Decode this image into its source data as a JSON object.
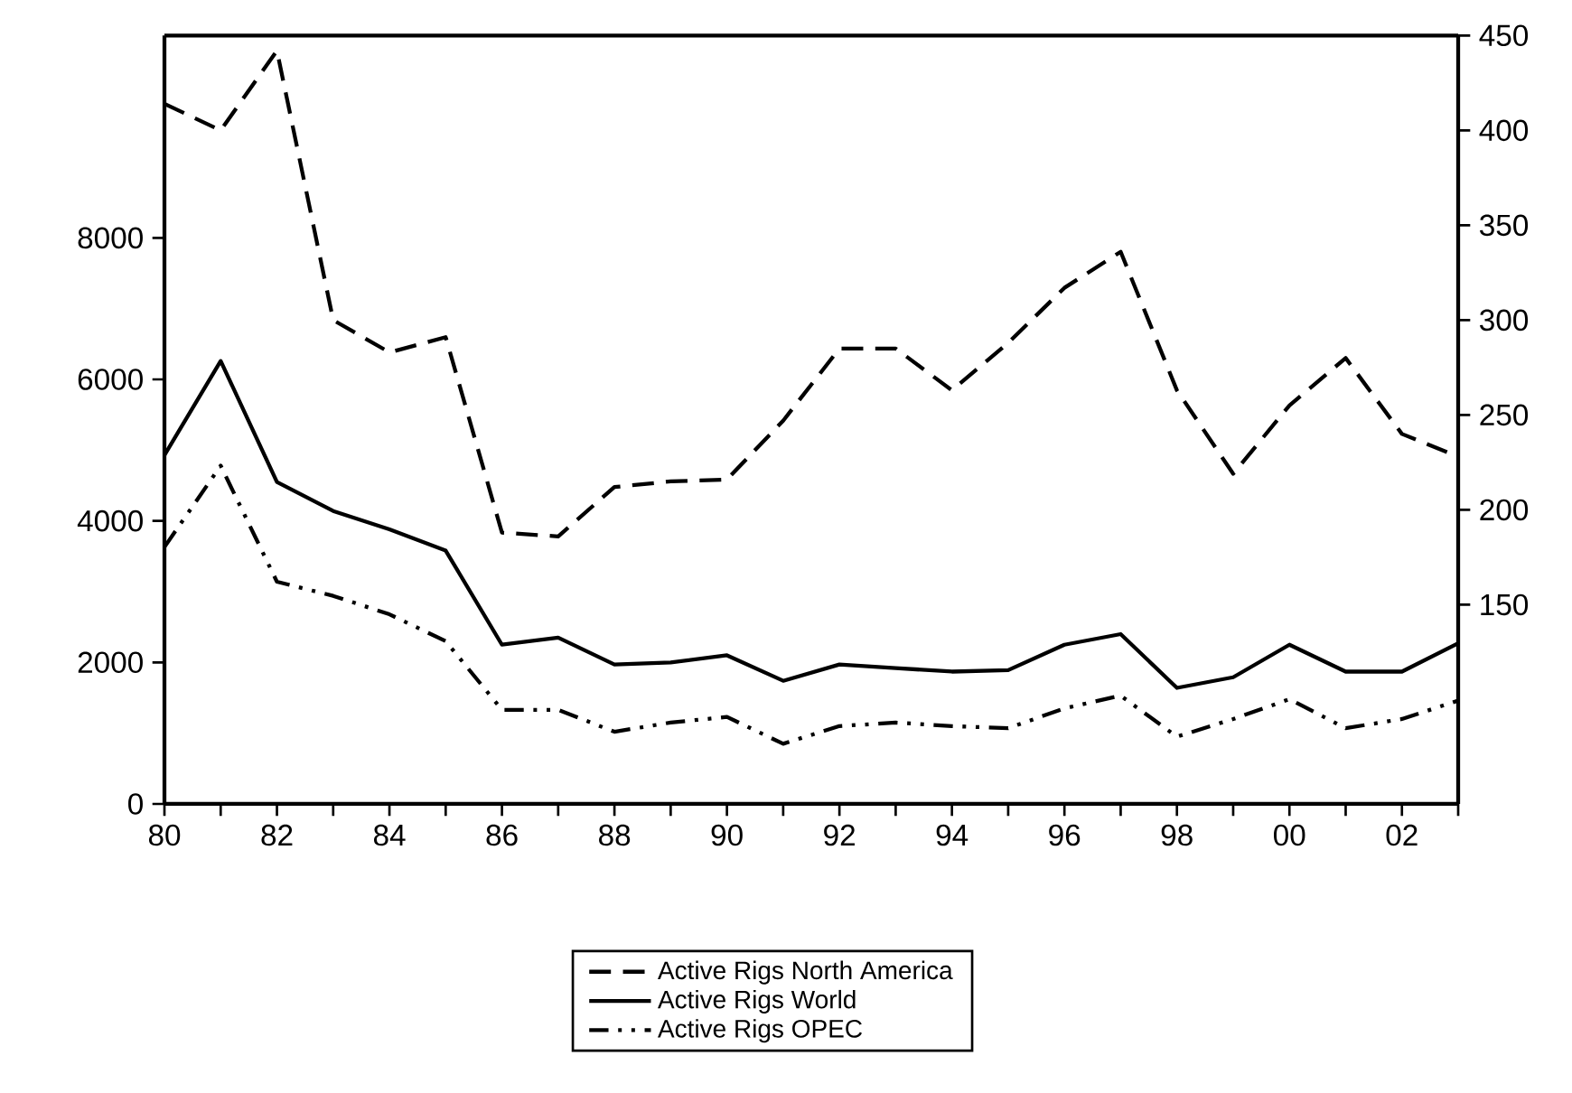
{
  "chart_data": {
    "type": "line",
    "x": [
      1980,
      1981,
      1982,
      1983,
      1984,
      1985,
      1986,
      1987,
      1988,
      1989,
      1990,
      1991,
      1992,
      1993,
      1994,
      1995,
      1996,
      1997,
      1998,
      1999,
      2000,
      2001,
      2002,
      2003
    ],
    "series": [
      {
        "name": "Active Rigs North America",
        "color": "#000000",
        "axis": "y2",
        "line_style": "dashed",
        "values": [
          414,
          400,
          442,
          300,
          283,
          291,
          188,
          186,
          212,
          215,
          216,
          247,
          285,
          285,
          263,
          288,
          317,
          336,
          263,
          219,
          255,
          280,
          240,
          228
        ]
      },
      {
        "name": "Active Rigs World",
        "color": "#000000",
        "line_style": "solid",
        "values": [
          4930,
          6260,
          4550,
          4140,
          3880,
          3580,
          2250,
          2350,
          1970,
          2000,
          2100,
          1740,
          1970,
          1920,
          1870,
          1890,
          2250,
          2400,
          1640,
          1790,
          2250,
          1870,
          1870,
          2270
        ]
      },
      {
        "name": "Active Rigs OPEC",
        "color": "#000000",
        "line_style": "dashdot",
        "values": [
          3630,
          4780,
          3140,
          2940,
          2680,
          2300,
          1330,
          1330,
          1020,
          1150,
          1230,
          850,
          1100,
          1150,
          1100,
          1070,
          1350,
          1530,
          950,
          1200,
          1480,
          1070,
          1200,
          1460
        ]
      }
    ],
    "xlim": [
      1980,
      2003
    ],
    "xticks": [
      {
        "value": 1980,
        "label": "80"
      },
      {
        "value": 1981,
        "label": null
      },
      {
        "value": 1982,
        "label": "82"
      },
      {
        "value": 1983,
        "label": null
      },
      {
        "value": 1984,
        "label": "84"
      },
      {
        "value": 1985,
        "label": null
      },
      {
        "value": 1986,
        "label": "86"
      },
      {
        "value": 1987,
        "label": null
      },
      {
        "value": 1988,
        "label": "88"
      },
      {
        "value": 1989,
        "label": null
      },
      {
        "value": 1990,
        "label": "90"
      },
      {
        "value": 1991,
        "label": null
      },
      {
        "value": 1992,
        "label": "92"
      },
      {
        "value": 1993,
        "label": null
      },
      {
        "value": 1994,
        "label": "94"
      },
      {
        "value": 1995,
        "label": null
      },
      {
        "value": 1996,
        "label": "96"
      },
      {
        "value": 1997,
        "label": null
      },
      {
        "value": 1998,
        "label": "98"
      },
      {
        "value": 1999,
        "label": null
      },
      {
        "value": 2000,
        "label": "00"
      },
      {
        "value": 2001,
        "label": null
      },
      {
        "value": 2002,
        "label": "02"
      },
      {
        "value": 2003,
        "label": null
      }
    ],
    "ylim": [
      0,
      10860
    ],
    "yticks": [
      0,
      2000,
      4000,
      6000,
      8000
    ],
    "y2lim": [
      45,
      450
    ],
    "y2ticks": [
      150,
      200,
      250,
      300,
      350,
      400,
      450
    ],
    "legend": "bottom",
    "grid": false
  }
}
